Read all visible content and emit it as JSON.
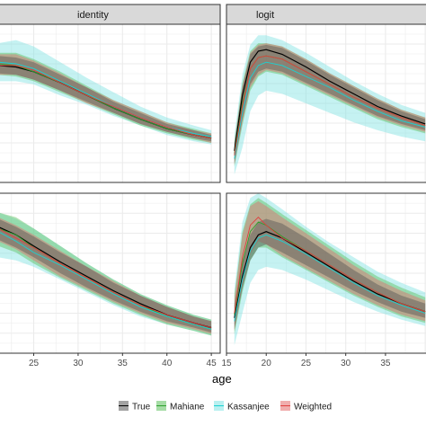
{
  "chart_data": {
    "type": "line",
    "xlabel": "age",
    "facet_columns": [
      "identity",
      "logit"
    ],
    "legend_position": "bottom",
    "grid": true,
    "series_colors": {
      "True": "#000000",
      "Mahiane": "#2ca02c",
      "Kassanjee": "#19d3d3",
      "Weighted": "#e0403f"
    },
    "band_colors": {
      "True": "#555555",
      "Mahiane": "#5cbf5c",
      "Kassanjee": "#7fe3e3",
      "Weighted": "#e36a6a"
    },
    "legend": [
      "True",
      "Mahiane",
      "Kassanjee",
      "Weighted"
    ],
    "panels": [
      {
        "strip": "identity",
        "row": 1,
        "col": 1,
        "xlim": [
          21,
          46
        ],
        "ylim": [
          0.0,
          1.0
        ],
        "x": [
          21,
          23,
          25,
          28,
          31,
          34,
          37,
          40,
          43,
          45
        ],
        "series": [
          {
            "name": "True",
            "values": [
              0.74,
              0.73,
              0.7,
              0.63,
              0.55,
              0.47,
              0.4,
              0.34,
              0.3,
              0.28
            ]
          },
          {
            "name": "Mahiane",
            "values": [
              0.75,
              0.74,
              0.7,
              0.63,
              0.55,
              0.47,
              0.4,
              0.34,
              0.3,
              0.28
            ]
          },
          {
            "name": "Kassanjee",
            "values": [
              0.76,
              0.75,
              0.72,
              0.64,
              0.56,
              0.48,
              0.41,
              0.35,
              0.31,
              0.29
            ]
          },
          {
            "name": "Weighted",
            "values": [
              0.74,
              0.74,
              0.71,
              0.63,
              0.55,
              0.48,
              0.41,
              0.35,
              0.3,
              0.28
            ]
          }
        ],
        "bands": [
          {
            "name": "Kassanjee",
            "lower": [
              0.64,
              0.64,
              0.62,
              0.55,
              0.49,
              0.42,
              0.36,
              0.3,
              0.26,
              0.24
            ],
            "upper": [
              0.88,
              0.9,
              0.86,
              0.76,
              0.66,
              0.57,
              0.48,
              0.41,
              0.36,
              0.33
            ]
          },
          {
            "name": "Mahiane",
            "lower": [
              0.68,
              0.67,
              0.64,
              0.57,
              0.5,
              0.43,
              0.36,
              0.31,
              0.27,
              0.25
            ],
            "upper": [
              0.82,
              0.82,
              0.78,
              0.7,
              0.61,
              0.52,
              0.45,
              0.38,
              0.34,
              0.31
            ]
          },
          {
            "name": "Weighted",
            "lower": [
              0.68,
              0.68,
              0.65,
              0.58,
              0.5,
              0.44,
              0.37,
              0.32,
              0.28,
              0.25
            ],
            "upper": [
              0.81,
              0.81,
              0.77,
              0.69,
              0.6,
              0.52,
              0.45,
              0.38,
              0.33,
              0.31
            ]
          },
          {
            "name": "True",
            "lower": [
              0.69,
              0.68,
              0.65,
              0.58,
              0.51,
              0.44,
              0.37,
              0.32,
              0.28,
              0.26
            ],
            "upper": [
              0.8,
              0.79,
              0.76,
              0.68,
              0.6,
              0.51,
              0.44,
              0.37,
              0.33,
              0.3
            ]
          }
        ]
      },
      {
        "strip": "logit",
        "row": 1,
        "col": 2,
        "xlim": [
          15,
          41
        ],
        "ylim": [
          0.0,
          1.0
        ],
        "x": [
          16,
          17,
          18,
          19,
          20,
          22,
          25,
          28,
          31,
          34,
          37,
          40
        ],
        "series": [
          {
            "name": "True",
            "values": [
              0.2,
              0.55,
              0.76,
              0.83,
              0.84,
              0.81,
              0.73,
              0.64,
              0.56,
              0.48,
              0.42,
              0.37
            ]
          },
          {
            "name": "Mahiane",
            "values": [
              0.18,
              0.5,
              0.72,
              0.79,
              0.8,
              0.78,
              0.7,
              0.62,
              0.54,
              0.47,
              0.41,
              0.36
            ]
          },
          {
            "name": "Kassanjee",
            "values": [
              0.15,
              0.44,
              0.66,
              0.74,
              0.76,
              0.74,
              0.67,
              0.6,
              0.52,
              0.45,
              0.39,
              0.35
            ]
          },
          {
            "name": "Weighted",
            "values": [
              0.17,
              0.48,
              0.72,
              0.79,
              0.8,
              0.78,
              0.7,
              0.62,
              0.54,
              0.47,
              0.41,
              0.36
            ]
          }
        ],
        "bands": [
          {
            "name": "Kassanjee",
            "lower": [
              0.05,
              0.22,
              0.45,
              0.55,
              0.58,
              0.56,
              0.5,
              0.44,
              0.38,
              0.33,
              0.29,
              0.26
            ],
            "upper": [
              0.3,
              0.68,
              0.87,
              0.93,
              0.93,
              0.9,
              0.82,
              0.73,
              0.64,
              0.56,
              0.49,
              0.44
            ]
          },
          {
            "name": "Mahiane",
            "lower": [
              0.1,
              0.36,
              0.58,
              0.67,
              0.7,
              0.68,
              0.61,
              0.54,
              0.47,
              0.4,
              0.35,
              0.31
            ],
            "upper": [
              0.26,
              0.63,
              0.83,
              0.88,
              0.88,
              0.86,
              0.78,
              0.69,
              0.61,
              0.53,
              0.46,
              0.41
            ]
          },
          {
            "name": "Weighted",
            "lower": [
              0.11,
              0.38,
              0.6,
              0.68,
              0.71,
              0.69,
              0.62,
              0.55,
              0.48,
              0.41,
              0.36,
              0.32
            ],
            "upper": [
              0.25,
              0.61,
              0.82,
              0.87,
              0.88,
              0.86,
              0.78,
              0.69,
              0.61,
              0.53,
              0.46,
              0.41
            ]
          },
          {
            "name": "True",
            "lower": [
              0.12,
              0.4,
              0.62,
              0.7,
              0.72,
              0.7,
              0.63,
              0.56,
              0.49,
              0.42,
              0.37,
              0.33
            ],
            "upper": [
              0.24,
              0.6,
              0.81,
              0.86,
              0.87,
              0.85,
              0.77,
              0.68,
              0.6,
              0.52,
              0.45,
              0.4
            ]
          }
        ]
      },
      {
        "strip": "",
        "row": 2,
        "col": 1,
        "xlim": [
          21,
          46
        ],
        "ylim": [
          0.0,
          1.0
        ],
        "x_ticks": [
          25,
          30,
          35,
          40,
          45
        ],
        "x": [
          20,
          21,
          23,
          25,
          28,
          31,
          34,
          37,
          40,
          43,
          45
        ],
        "series": [
          {
            "name": "True",
            "values": [
              0.8,
              0.79,
              0.74,
              0.67,
              0.57,
              0.48,
              0.39,
              0.31,
              0.24,
              0.19,
              0.16
            ]
          },
          {
            "name": "Mahiane",
            "values": [
              0.78,
              0.78,
              0.74,
              0.66,
              0.56,
              0.47,
              0.38,
              0.3,
              0.23,
              0.18,
              0.15
            ]
          },
          {
            "name": "Kassanjee",
            "values": [
              0.77,
              0.76,
              0.7,
              0.63,
              0.55,
              0.46,
              0.37,
              0.29,
              0.23,
              0.18,
              0.15
            ]
          },
          {
            "name": "Weighted",
            "values": [
              0.8,
              0.78,
              0.72,
              0.66,
              0.56,
              0.47,
              0.38,
              0.3,
              0.24,
              0.19,
              0.16
            ]
          }
        ],
        "bands": [
          {
            "name": "Kassanjee",
            "lower": [
              0.58,
              0.6,
              0.58,
              0.54,
              0.46,
              0.38,
              0.3,
              0.23,
              0.18,
              0.14,
              0.11
            ],
            "upper": [
              0.88,
              0.88,
              0.84,
              0.78,
              0.67,
              0.56,
              0.46,
              0.37,
              0.3,
              0.24,
              0.21
            ]
          },
          {
            "name": "Mahiane",
            "lower": [
              0.66,
              0.67,
              0.63,
              0.56,
              0.47,
              0.39,
              0.31,
              0.24,
              0.18,
              0.14,
              0.11
            ],
            "upper": [
              0.88,
              0.88,
              0.85,
              0.78,
              0.67,
              0.56,
              0.46,
              0.37,
              0.3,
              0.24,
              0.21
            ]
          },
          {
            "name": "Weighted",
            "lower": [
              0.7,
              0.7,
              0.65,
              0.58,
              0.48,
              0.4,
              0.32,
              0.25,
              0.19,
              0.15,
              0.12
            ],
            "upper": [
              0.86,
              0.85,
              0.8,
              0.74,
              0.64,
              0.54,
              0.45,
              0.36,
              0.29,
              0.23,
              0.2
            ]
          },
          {
            "name": "True",
            "lower": [
              0.72,
              0.71,
              0.66,
              0.6,
              0.5,
              0.41,
              0.33,
              0.26,
              0.2,
              0.16,
              0.13
            ],
            "upper": [
              0.85,
              0.84,
              0.79,
              0.73,
              0.63,
              0.54,
              0.44,
              0.36,
              0.29,
              0.23,
              0.2
            ]
          }
        ]
      },
      {
        "strip": "",
        "row": 2,
        "col": 2,
        "xlim": [
          15,
          41
        ],
        "ylim": [
          0.0,
          1.0
        ],
        "x_ticks": [
          15,
          20,
          25,
          30,
          35
        ],
        "x": [
          16,
          17,
          18,
          19,
          20,
          22,
          25,
          28,
          31,
          34,
          37,
          40
        ],
        "series": [
          {
            "name": "True",
            "values": [
              0.22,
              0.48,
              0.66,
              0.74,
              0.76,
              0.72,
              0.63,
              0.54,
              0.45,
              0.37,
              0.31,
              0.26
            ]
          },
          {
            "name": "Mahiane",
            "values": [
              0.24,
              0.56,
              0.76,
              0.82,
              0.8,
              0.73,
              0.64,
              0.55,
              0.46,
              0.38,
              0.31,
              0.26
            ]
          },
          {
            "name": "Kassanjee",
            "values": [
              0.2,
              0.46,
              0.64,
              0.72,
              0.74,
              0.7,
              0.62,
              0.53,
              0.44,
              0.36,
              0.3,
              0.25
            ]
          },
          {
            "name": "Weighted",
            "values": [
              0.25,
              0.6,
              0.8,
              0.85,
              0.8,
              0.72,
              0.64,
              0.55,
              0.46,
              0.38,
              0.31,
              0.26
            ]
          }
        ],
        "bands": [
          {
            "name": "Kassanjee",
            "lower": [
              0.05,
              0.25,
              0.44,
              0.52,
              0.54,
              0.52,
              0.46,
              0.39,
              0.32,
              0.26,
              0.21,
              0.17
            ],
            "upper": [
              0.4,
              0.82,
              0.97,
              1.0,
              0.97,
              0.9,
              0.79,
              0.69,
              0.6,
              0.51,
              0.44,
              0.38
            ]
          },
          {
            "name": "Mahiane",
            "lower": [
              0.12,
              0.38,
              0.58,
              0.66,
              0.66,
              0.6,
              0.52,
              0.44,
              0.36,
              0.29,
              0.23,
              0.19
            ],
            "upper": [
              0.36,
              0.76,
              0.93,
              0.97,
              0.94,
              0.87,
              0.77,
              0.67,
              0.57,
              0.48,
              0.41,
              0.35
            ]
          },
          {
            "name": "Weighted",
            "lower": [
              0.14,
              0.42,
              0.62,
              0.7,
              0.68,
              0.61,
              0.53,
              0.45,
              0.37,
              0.3,
              0.24,
              0.2
            ],
            "upper": [
              0.34,
              0.74,
              0.92,
              0.95,
              0.92,
              0.85,
              0.75,
              0.65,
              0.55,
              0.46,
              0.39,
              0.33
            ]
          },
          {
            "name": "True",
            "lower": [
              0.15,
              0.4,
              0.58,
              0.66,
              0.68,
              0.63,
              0.55,
              0.47,
              0.39,
              0.32,
              0.26,
              0.22
            ],
            "upper": [
              0.3,
              0.58,
              0.74,
              0.82,
              0.84,
              0.81,
              0.72,
              0.62,
              0.52,
              0.43,
              0.36,
              0.31
            ]
          }
        ]
      }
    ]
  }
}
